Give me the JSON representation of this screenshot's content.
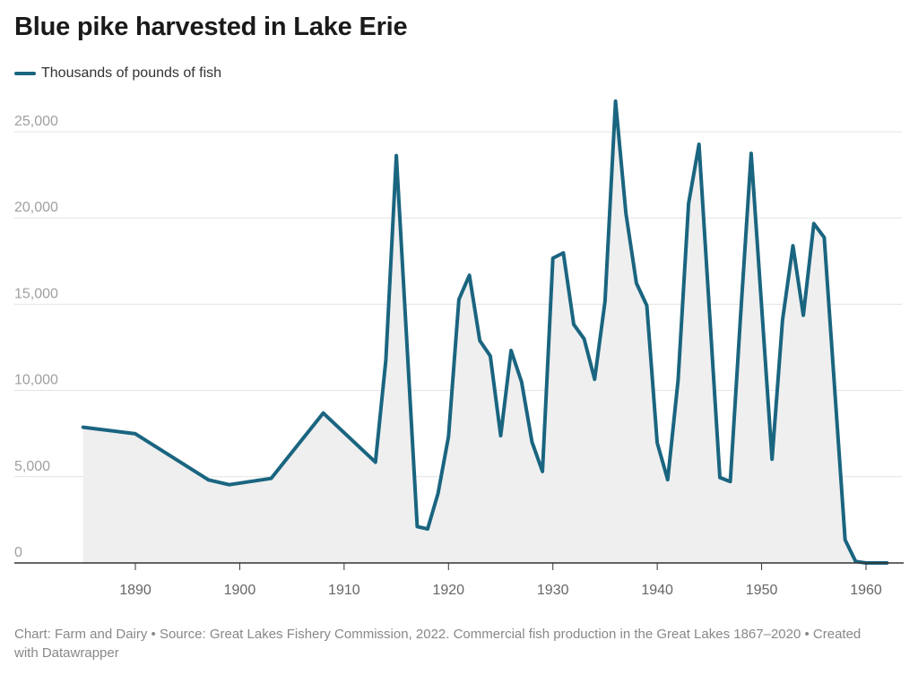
{
  "chart_data": {
    "type": "area",
    "title": "Blue pike harvested in Lake Erie",
    "xlabel": "",
    "ylabel": "",
    "series": [
      {
        "name": "Thousands of pounds of fish",
        "color": "#1a6580",
        "fill": "#efefef",
        "x": [
          1885,
          1890,
          1897,
          1899,
          1903,
          1908,
          1913,
          1914,
          1915,
          1917,
          1918,
          1919,
          1920,
          1921,
          1922,
          1923,
          1924,
          1925,
          1926,
          1927,
          1928,
          1929,
          1930,
          1931,
          1932,
          1933,
          1934,
          1935,
          1936,
          1937,
          1938,
          1939,
          1940,
          1941,
          1942,
          1943,
          1944,
          1946,
          1947,
          1948,
          1949,
          1951,
          1952,
          1953,
          1954,
          1955,
          1956,
          1958,
          1959,
          1960,
          1961,
          1962
        ],
        "y": [
          7870,
          7490,
          4820,
          4540,
          4900,
          8690,
          5840,
          11760,
          23620,
          2110,
          1970,
          4030,
          7330,
          15280,
          16680,
          12890,
          12000,
          7380,
          12320,
          10500,
          7020,
          5300,
          17670,
          17980,
          13830,
          12990,
          10650,
          15180,
          26770,
          20270,
          16220,
          14920,
          6960,
          4830,
          10600,
          20840,
          24270,
          4950,
          4720,
          14500,
          23750,
          6020,
          14090,
          18390,
          14360,
          19680,
          18870,
          1340,
          90,
          0,
          0,
          0
        ]
      }
    ],
    "xlim": [
      1883,
      1964
    ],
    "ylim": [
      0,
      27500
    ],
    "x_ticks": [
      "1890",
      "1900",
      "1910",
      "1920",
      "1930",
      "1940",
      "1950",
      "1960"
    ],
    "y_ticks": [
      "0",
      "5,000",
      "10,000",
      "15,000",
      "20,000",
      "25,000"
    ],
    "grid": "horizontal",
    "legend": "top-left"
  },
  "footer": "Chart: Farm and Dairy • Source: Great Lakes Fishery Commission, 2022. Commercial fish production in the Great Lakes 1867–2020 • Created with Datawrapper"
}
